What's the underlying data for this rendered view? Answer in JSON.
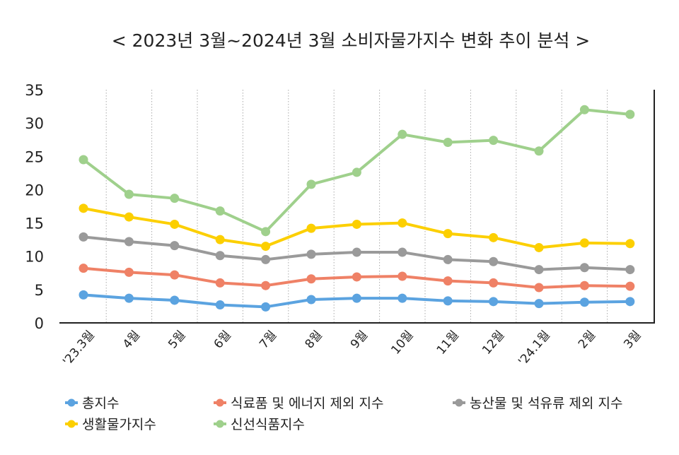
{
  "chart_data": {
    "type": "line",
    "title": "< 2023년 3월~2024년 3월 소비자물가지수 변화 추이 분석 >",
    "xlabel": "",
    "ylabel": "",
    "ylim": [
      0,
      35
    ],
    "yticks": [
      0,
      5,
      10,
      15,
      20,
      25,
      30,
      35
    ],
    "grid": "vertical dotted",
    "legend_position": "bottom",
    "categories": [
      "'23.3월",
      "4월",
      "5월",
      "6월",
      "7월",
      "8월",
      "9월",
      "10월",
      "11월",
      "12월",
      "'24.1월",
      "2월",
      "3월"
    ],
    "series": [
      {
        "name": "총지수",
        "color": "#5ba3e0",
        "values": [
          4.2,
          3.7,
          3.4,
          2.7,
          2.4,
          3.5,
          3.7,
          3.7,
          3.3,
          3.2,
          2.9,
          3.1,
          3.2
        ]
      },
      {
        "name": "식료품 및 에너지 제외 지수",
        "color": "#ef8166",
        "values": [
          8.2,
          7.6,
          7.2,
          6.0,
          5.6,
          6.6,
          6.9,
          7.0,
          6.3,
          6.0,
          5.3,
          5.6,
          5.5
        ]
      },
      {
        "name": "농산물 및 석유류 제외 지수",
        "color": "#9a9a9a",
        "values": [
          12.9,
          12.2,
          11.6,
          10.1,
          9.5,
          10.3,
          10.6,
          10.6,
          9.5,
          9.2,
          8.0,
          8.3,
          8.0
        ]
      },
      {
        "name": "생활물가지수",
        "color": "#fccf00",
        "values": [
          17.2,
          15.9,
          14.8,
          12.5,
          11.5,
          14.2,
          14.8,
          15.0,
          13.4,
          12.8,
          11.3,
          12.0,
          11.9
        ]
      },
      {
        "name": "신선식품지수",
        "color": "#9fd08c",
        "values": [
          24.5,
          19.3,
          18.7,
          16.8,
          13.7,
          20.8,
          22.6,
          28.3,
          27.1,
          27.4,
          25.8,
          32.0,
          31.3
        ]
      }
    ]
  }
}
